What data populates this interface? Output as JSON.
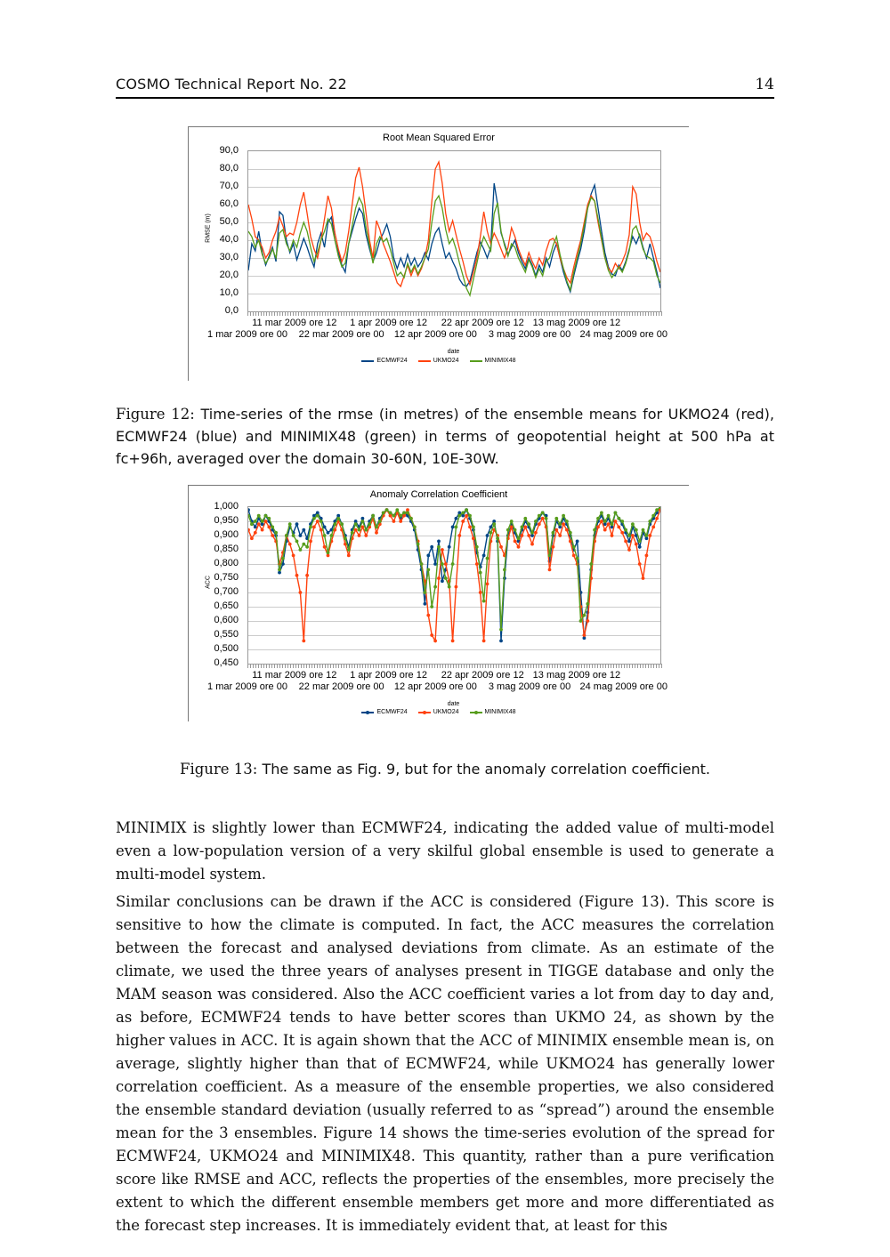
{
  "header": {
    "title": "COSMO Technical Report No. 22",
    "page_number": "14"
  },
  "figure12": {
    "caption_label": "Figure 12:",
    "caption_text": "Time-series of the rmse (in metres) of the ensemble means for UKMO24 (red), ECMWF24 (blue) and MINIMIX48 (green) in terms of geopotential height at 500 hPa at fc+96h, averaged over the domain 30-60N, 10E-30W."
  },
  "figure13": {
    "caption_label": "Figure 13:",
    "caption_text": "The same as Fig. 9, but for the anomaly correlation coefficient."
  },
  "paragraphs": {
    "p1": "MINIMIX is slightly lower than ECMWF24, indicating the added value of multi-model even a low-population version of a very skilful global ensemble is used to generate a multi-model system.",
    "p2": "Similar conclusions can be drawn if the ACC is considered (Figure 13). This score is sensitive to how the climate is computed. In fact, the ACC measures the correlation between the forecast and analysed deviations from climate. As an estimate of the climate, we used the three years of analyses present in TIGGE database and only the MAM season was considered. Also the ACC coefficient varies a lot from day to day and, as before, ECMWF24 tends to have better scores than UKMO 24, as shown by the higher values in ACC. It is again shown that the ACC of MINIMIX ensemble mean is, on average, slightly higher than that of ECMWF24, while UKMO24 has generally lower correlation coefficient. As a measure of the ensemble properties, we also considered the ensemble standard deviation (usually referred to as “spread”) around the ensemble mean for the 3 ensembles. Figure 14 shows the time-series evolution of the spread for ECMWF24, UKMO24 and MINIMIX48. This quantity, rather than a pure verification score like RMSE and ACC, reflects the properties of the ensembles, more precisely the extent to which the different ensemble members get more and more differentiated as the forecast step increases. It is immediately evident that, at least for this"
  },
  "chart_data": [
    {
      "type": "line",
      "title": "Root Mean Squared Error",
      "xlabel": "date",
      "ylabel": "RMSE (m)",
      "ylim": [
        0,
        90
      ],
      "grid": "horizontal",
      "legend_position": "bottom",
      "markers": false,
      "y_ticks": [
        "90,0",
        "80,0",
        "70,0",
        "60,0",
        "50,0",
        "40,0",
        "30,0",
        "20,0",
        "10,0",
        "0,0"
      ],
      "x_ticks_row1": [
        "11 mar 2009 ore 12",
        "1 apr 2009 ore 12",
        "22 apr 2009 ore 12",
        "13 mag 2009 ore 12"
      ],
      "x_ticks_row2": [
        "1 mar 2009 ore 00",
        "22 mar 2009 ore 00",
        "12 apr 2009 ore 00",
        "3 mag 2009 ore 00",
        "24 mag 2009 ore 00"
      ],
      "x_span_days": 92,
      "x_label_step_days": 21,
      "series": [
        {
          "name": "ECMWF24",
          "color": "#004586",
          "values": [
            23,
            38,
            34,
            45,
            33,
            26,
            31,
            36,
            28,
            56,
            54,
            40,
            33,
            38,
            29,
            35,
            41,
            36,
            30,
            25,
            38,
            44,
            36,
            50,
            53,
            40,
            33,
            26,
            22,
            38,
            45,
            52,
            58,
            55,
            43,
            35,
            28,
            33,
            40,
            44,
            49,
            42,
            30,
            24,
            30,
            25,
            32,
            26,
            30,
            25,
            28,
            33,
            29,
            38,
            44,
            47,
            38,
            30,
            33,
            28,
            24,
            18,
            15,
            14,
            17,
            25,
            33,
            39,
            35,
            30,
            36,
            72,
            60,
            44,
            38,
            32,
            36,
            40,
            33,
            28,
            24,
            30,
            26,
            20,
            26,
            22,
            30,
            25,
            33,
            38,
            30,
            22,
            16,
            11,
            20,
            28,
            35,
            45,
            58,
            66,
            71,
            58,
            45,
            33,
            25,
            21,
            20,
            26,
            23,
            28,
            35,
            42,
            38,
            43,
            36,
            30,
            38,
            30,
            22,
            13
          ]
        },
        {
          "name": "UKMO24",
          "color": "#ff420e",
          "values": [
            60,
            52,
            42,
            40,
            36,
            30,
            33,
            40,
            45,
            53,
            48,
            42,
            44,
            43,
            50,
            60,
            67,
            55,
            42,
            35,
            30,
            40,
            52,
            65,
            58,
            44,
            35,
            28,
            33,
            45,
            60,
            75,
            81,
            70,
            55,
            40,
            30,
            51,
            46,
            38,
            33,
            28,
            22,
            16,
            14,
            20,
            26,
            20,
            25,
            20,
            24,
            30,
            40,
            62,
            80,
            84,
            72,
            55,
            45,
            51,
            43,
            35,
            28,
            20,
            15,
            22,
            30,
            42,
            56,
            45,
            38,
            44,
            40,
            35,
            30,
            36,
            47,
            42,
            35,
            30,
            26,
            33,
            28,
            24,
            30,
            26,
            34,
            40,
            41,
            38,
            30,
            24,
            19,
            16,
            25,
            33,
            40,
            50,
            60,
            65,
            62,
            50,
            40,
            30,
            24,
            22,
            27,
            24,
            28,
            33,
            43,
            70,
            66,
            50,
            40,
            44,
            42,
            36,
            28,
            22
          ]
        },
        {
          "name": "MINIMIX48",
          "color": "#579d1c",
          "values": [
            45,
            42,
            36,
            40,
            32,
            27,
            30,
            35,
            30,
            44,
            46,
            38,
            34,
            40,
            36,
            44,
            50,
            45,
            36,
            28,
            33,
            40,
            45,
            52,
            49,
            40,
            31,
            25,
            27,
            38,
            48,
            58,
            64,
            60,
            47,
            37,
            27,
            38,
            42,
            39,
            41,
            35,
            27,
            20,
            22,
            19,
            27,
            22,
            26,
            21,
            25,
            30,
            35,
            50,
            62,
            65,
            58,
            46,
            38,
            41,
            35,
            27,
            20,
            13,
            9,
            18,
            27,
            36,
            42,
            38,
            34,
            55,
            61,
            45,
            37,
            31,
            38,
            36,
            30,
            26,
            22,
            29,
            25,
            19,
            24,
            20,
            28,
            30,
            37,
            42,
            32,
            24,
            17,
            12,
            22,
            30,
            38,
            48,
            58,
            64,
            62,
            52,
            41,
            30,
            23,
            19,
            22,
            25,
            22,
            27,
            34,
            46,
            48,
            42,
            35,
            31,
            30,
            28,
            20,
            16
          ]
        }
      ]
    },
    {
      "type": "line",
      "title": "Anomaly Correlation Coefficient",
      "xlabel": "date",
      "ylabel": "ACC",
      "ylim": [
        0.45,
        1.0
      ],
      "grid": "horizontal",
      "legend_position": "bottom",
      "markers": true,
      "y_ticks": [
        "1,000",
        "0,950",
        "0,900",
        "0,850",
        "0,800",
        "0,750",
        "0,700",
        "0,650",
        "0,600",
        "0,550",
        "0,500",
        "0,450"
      ],
      "x_ticks_row1": [
        "11 mar 2009 ore 12",
        "1 apr 2009 ore 12",
        "22 apr 2009 ore 12",
        "13 mag 2009 ore 12"
      ],
      "x_ticks_row2": [
        "1 mar 2009 ore 00",
        "22 mar 2009 ore 00",
        "12 apr 2009 ore 00",
        "3 mag 2009 ore 00",
        "24 mag 2009 ore 00"
      ],
      "x_span_days": 92,
      "x_label_step_days": 21,
      "series": [
        {
          "name": "ECMWF24",
          "color": "#004586",
          "values": [
            0.99,
            0.95,
            0.93,
            0.96,
            0.94,
            0.97,
            0.95,
            0.92,
            0.9,
            0.77,
            0.8,
            0.88,
            0.93,
            0.91,
            0.94,
            0.9,
            0.92,
            0.89,
            0.94,
            0.97,
            0.98,
            0.96,
            0.93,
            0.91,
            0.92,
            0.95,
            0.97,
            0.94,
            0.9,
            0.86,
            0.92,
            0.95,
            0.93,
            0.96,
            0.92,
            0.95,
            0.97,
            0.93,
            0.96,
            0.98,
            0.99,
            0.98,
            0.97,
            0.98,
            0.96,
            0.98,
            0.97,
            0.95,
            0.92,
            0.85,
            0.78,
            0.66,
            0.83,
            0.86,
            0.8,
            0.88,
            0.74,
            0.78,
            0.86,
            0.93,
            0.96,
            0.98,
            0.97,
            0.99,
            0.96,
            0.92,
            0.84,
            0.79,
            0.83,
            0.9,
            0.93,
            0.95,
            0.88,
            0.53,
            0.75,
            0.9,
            0.94,
            0.91,
            0.88,
            0.92,
            0.95,
            0.93,
            0.9,
            0.94,
            0.96,
            0.98,
            0.97,
            0.81,
            0.9,
            0.95,
            0.93,
            0.96,
            0.94,
            0.9,
            0.85,
            0.88,
            0.7,
            0.54,
            0.63,
            0.78,
            0.9,
            0.95,
            0.97,
            0.94,
            0.96,
            0.93,
            0.98,
            0.96,
            0.94,
            0.91,
            0.88,
            0.93,
            0.9,
            0.86,
            0.91,
            0.89,
            0.94,
            0.96,
            0.98,
            1.0
          ]
        },
        {
          "name": "UKMO24",
          "color": "#ff420e",
          "values": [
            0.92,
            0.89,
            0.91,
            0.94,
            0.92,
            0.95,
            0.93,
            0.9,
            0.88,
            0.8,
            0.84,
            0.9,
            0.87,
            0.83,
            0.76,
            0.7,
            0.53,
            0.76,
            0.88,
            0.93,
            0.95,
            0.92,
            0.86,
            0.83,
            0.88,
            0.92,
            0.95,
            0.92,
            0.87,
            0.83,
            0.89,
            0.92,
            0.9,
            0.93,
            0.9,
            0.93,
            0.96,
            0.91,
            0.94,
            0.97,
            0.99,
            0.97,
            0.95,
            0.98,
            0.95,
            0.97,
            0.99,
            0.96,
            0.93,
            0.88,
            0.8,
            0.74,
            0.62,
            0.55,
            0.53,
            0.75,
            0.85,
            0.8,
            0.74,
            0.53,
            0.72,
            0.9,
            0.95,
            0.97,
            0.93,
            0.89,
            0.8,
            0.7,
            0.53,
            0.73,
            0.88,
            0.92,
            0.9,
            0.86,
            0.83,
            0.89,
            0.93,
            0.88,
            0.86,
            0.9,
            0.93,
            0.9,
            0.87,
            0.91,
            0.94,
            0.96,
            0.93,
            0.78,
            0.86,
            0.92,
            0.9,
            0.94,
            0.92,
            0.88,
            0.83,
            0.8,
            0.65,
            0.55,
            0.6,
            0.75,
            0.88,
            0.93,
            0.95,
            0.92,
            0.94,
            0.9,
            0.95,
            0.93,
            0.91,
            0.88,
            0.85,
            0.9,
            0.87,
            0.8,
            0.75,
            0.83,
            0.9,
            0.93,
            0.96,
            0.99
          ]
        },
        {
          "name": "MINIMIX48",
          "color": "#579d1c",
          "values": [
            0.97,
            0.94,
            0.95,
            0.97,
            0.95,
            0.97,
            0.96,
            0.93,
            0.91,
            0.78,
            0.82,
            0.9,
            0.94,
            0.9,
            0.88,
            0.85,
            0.87,
            0.86,
            0.93,
            0.96,
            0.97,
            0.95,
            0.9,
            0.84,
            0.9,
            0.94,
            0.96,
            0.94,
            0.89,
            0.85,
            0.91,
            0.94,
            0.92,
            0.95,
            0.92,
            0.94,
            0.97,
            0.93,
            0.95,
            0.98,
            0.99,
            0.98,
            0.97,
            0.99,
            0.97,
            0.98,
            0.98,
            0.96,
            0.93,
            0.87,
            0.8,
            0.7,
            0.78,
            0.65,
            0.72,
            0.86,
            0.8,
            0.75,
            0.72,
            0.8,
            0.93,
            0.97,
            0.98,
            0.99,
            0.97,
            0.93,
            0.86,
            0.77,
            0.67,
            0.82,
            0.91,
            0.94,
            0.89,
            0.57,
            0.78,
            0.92,
            0.95,
            0.92,
            0.89,
            0.93,
            0.96,
            0.94,
            0.91,
            0.95,
            0.97,
            0.98,
            0.96,
            0.83,
            0.91,
            0.96,
            0.94,
            0.97,
            0.95,
            0.91,
            0.86,
            0.82,
            0.6,
            0.62,
            0.66,
            0.8,
            0.92,
            0.96,
            0.98,
            0.95,
            0.97,
            0.94,
            0.98,
            0.96,
            0.95,
            0.92,
            0.9,
            0.94,
            0.92,
            0.88,
            0.92,
            0.9,
            0.95,
            0.97,
            0.99,
            1.0
          ]
        }
      ]
    }
  ]
}
